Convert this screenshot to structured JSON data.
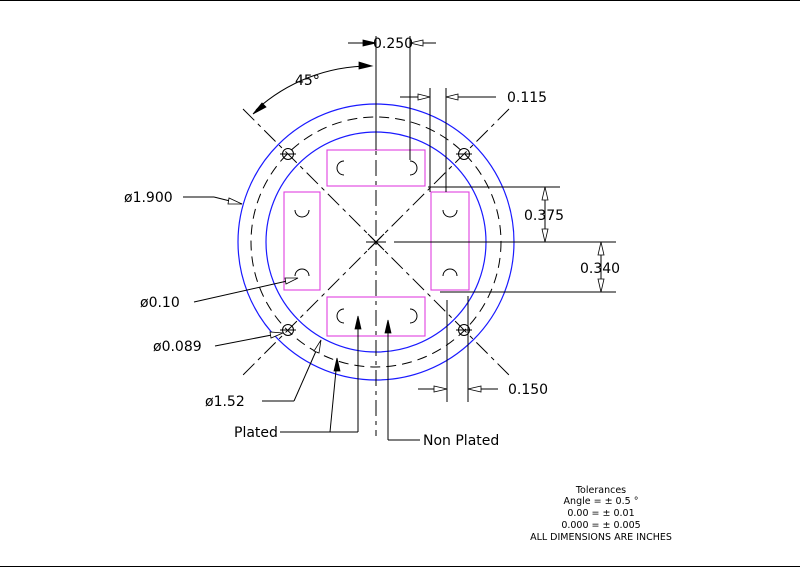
{
  "dimensions": {
    "spacing_0250": "0.250",
    "spacing_0115": "0.115",
    "angle_45": "45°",
    "dia_1900": "ø1.900",
    "offset_0375": "0.375",
    "offset_0340": "0.340",
    "dia_010": "ø0.10",
    "dia_0089": "ø0.089",
    "dia_152": "ø1.52",
    "spacing_0150": "0.150"
  },
  "labels": {
    "plated": "Plated",
    "non_plated": "Non Plated"
  },
  "tolerances": {
    "title": "Tolerances",
    "angle": "Angle  = ± 0.5 °",
    "two_decimal": "0.00 = ± 0.01",
    "three_decimal": "0.000 = ± 0.005",
    "units_note": "ALL DIMENSIONS ARE INCHES"
  },
  "colors": {
    "outline": "#1a1aff",
    "pads": "#e040e0",
    "lines": "#000000"
  }
}
